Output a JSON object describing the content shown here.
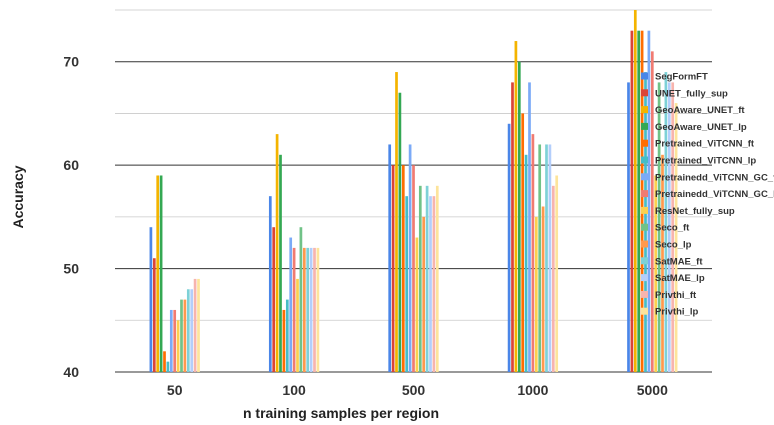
{
  "chart_data": {
    "type": "bar",
    "title": "",
    "xlabel": "n training samples per region",
    "ylabel": "Accuracy",
    "ylim": [
      40,
      75
    ],
    "yticks": [
      40,
      50,
      60,
      70
    ],
    "grid": true,
    "legend_position": "right",
    "categories": [
      "50",
      "100",
      "500",
      "1000",
      "5000"
    ],
    "series": [
      {
        "name": "SegFormFT",
        "color": "#4a86e8",
        "values": [
          54,
          57,
          62,
          64,
          68
        ]
      },
      {
        "name": "UNET_fully_sup",
        "color": "#db4437",
        "values": [
          51,
          54,
          60,
          68,
          73
        ]
      },
      {
        "name": "GeoAware_UNET_ft",
        "color": "#f4b400",
        "values": [
          59,
          63,
          69,
          72,
          75
        ]
      },
      {
        "name": "GeoAware_UNET_lp",
        "color": "#34a853",
        "values": [
          59,
          61,
          67,
          70,
          73
        ]
      },
      {
        "name": "Pretrained_ViTCNN_ft",
        "color": "#ff6d01",
        "values": [
          42,
          46,
          60,
          65,
          73
        ]
      },
      {
        "name": "Pretrained_ViTCNN_lp",
        "color": "#46bdc6",
        "values": [
          41,
          47,
          57,
          61,
          69
        ]
      },
      {
        "name": "Pretrainedd_ViTCNN_GC_ft",
        "color": "#7baaf7",
        "values": [
          46,
          53,
          62,
          68,
          73
        ]
      },
      {
        "name": "Pretrainedd_ViTCNN_GC_lp",
        "color": "#f07b72",
        "values": [
          46,
          52,
          60,
          63,
          71
        ]
      },
      {
        "name": "ResNet_fully_sup",
        "color": "#fcd04f",
        "values": [
          45,
          49,
          53,
          55,
          59
        ]
      },
      {
        "name": "Seco_ft",
        "color": "#71c287",
        "values": [
          47,
          54,
          58,
          62,
          68
        ]
      },
      {
        "name": "Seco_lp",
        "color": "#ff994d",
        "values": [
          47,
          52,
          55,
          56,
          61
        ]
      },
      {
        "name": "SatMAE_ft",
        "color": "#7ed1d7",
        "values": [
          48,
          52,
          58,
          62,
          69
        ]
      },
      {
        "name": "SatMAE_lp",
        "color": "#b3cefb",
        "values": [
          48,
          52,
          57,
          62,
          68
        ]
      },
      {
        "name": "Privthi_ft",
        "color": "#f7b4ae",
        "values": [
          49,
          52,
          57,
          58,
          68
        ]
      },
      {
        "name": "Privthi_lp",
        "color": "#fde49b",
        "values": [
          49,
          52,
          58,
          59,
          66
        ]
      }
    ]
  }
}
